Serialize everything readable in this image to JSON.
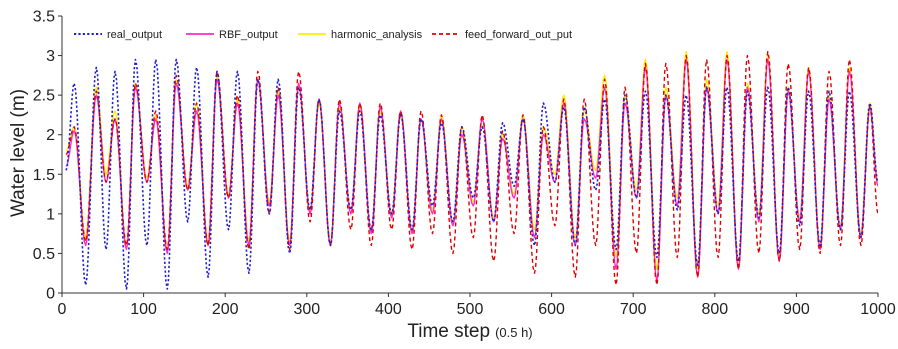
{
  "chart_data": {
    "type": "line",
    "title": "",
    "xlabel": "Time step",
    "xlabel_unit": "(0.5 h)",
    "ylabel": "Water level (m)",
    "xlim": [
      0,
      1000
    ],
    "ylim": [
      0,
      3.5
    ],
    "xticks": [
      0,
      100,
      200,
      300,
      400,
      500,
      600,
      700,
      800,
      900,
      1000
    ],
    "yticks": [
      0,
      0.5,
      1,
      1.5,
      2,
      2.5,
      3,
      3.5
    ],
    "xtick_labels": [
      "0",
      "100",
      "200",
      "300",
      "400",
      "500",
      "600",
      "700",
      "800",
      "900",
      "1000"
    ],
    "ytick_labels": [
      "0",
      "0.5",
      "1",
      "1.5",
      "2",
      "2.5",
      "3",
      "3.5"
    ],
    "grid": false,
    "legend_position": "top",
    "approx_period_timesteps": 24.8,
    "series": [
      {
        "name": "real_output",
        "color": "#1f1fd0",
        "style": "dotted",
        "peaks_x": [
          15,
          42,
          65,
          90,
          115,
          140,
          165,
          190,
          215,
          240,
          265,
          290,
          315,
          340,
          365,
          390,
          415,
          440,
          465,
          490,
          515,
          540,
          565,
          590,
          615,
          640,
          665,
          690,
          715,
          740,
          765,
          790,
          815,
          840,
          865,
          890,
          915,
          940,
          965,
          990
        ],
        "peaks_y": [
          2.65,
          2.85,
          2.8,
          2.95,
          2.95,
          2.95,
          2.85,
          2.8,
          2.8,
          2.7,
          2.7,
          2.6,
          2.45,
          2.3,
          2.3,
          2.25,
          2.25,
          2.2,
          2.15,
          2.1,
          2.1,
          2.15,
          2.2,
          2.4,
          2.35,
          2.35,
          2.45,
          2.5,
          2.55,
          2.5,
          2.5,
          2.6,
          2.6,
          2.55,
          2.6,
          2.6,
          2.55,
          2.55,
          2.55,
          2.4
        ],
        "troughs_x": [
          5,
          29,
          54,
          79,
          104,
          129,
          154,
          179,
          204,
          229,
          254,
          279,
          304,
          329,
          354,
          379,
          404,
          429,
          454,
          479,
          504,
          529,
          554,
          579,
          604,
          629,
          654,
          679,
          704,
          729,
          754,
          779,
          804,
          829,
          854,
          879,
          904,
          929,
          954,
          979,
          1000
        ],
        "troughs_y": [
          1.55,
          0.1,
          0.55,
          0.05,
          0.6,
          0.05,
          0.9,
          0.2,
          0.8,
          0.25,
          1.0,
          0.5,
          1.05,
          0.6,
          1.05,
          0.8,
          1.0,
          0.8,
          1.1,
          0.9,
          1.2,
          0.9,
          1.35,
          0.6,
          1.4,
          0.6,
          1.3,
          0.55,
          1.2,
          0.45,
          1.05,
          0.35,
          1.0,
          0.4,
          0.95,
          0.5,
          0.85,
          0.6,
          0.8,
          0.7,
          1.4
        ]
      },
      {
        "name": "RBF_output",
        "color": "#ff2ccc",
        "style": "solid",
        "peaks_x": [
          15,
          42,
          65,
          90,
          115,
          140,
          165,
          190,
          215,
          240,
          265,
          290,
          315,
          340,
          365,
          390,
          415,
          440,
          465,
          490,
          515,
          540,
          565,
          590,
          615,
          640,
          665,
          690,
          715,
          740,
          765,
          790,
          815,
          840,
          865,
          890,
          915,
          940,
          965,
          990
        ],
        "peaks_y": [
          2.05,
          2.5,
          2.2,
          2.6,
          2.2,
          2.65,
          2.3,
          2.7,
          2.4,
          2.7,
          2.5,
          2.65,
          2.45,
          2.4,
          2.4,
          2.35,
          2.3,
          2.2,
          2.2,
          2.0,
          2.2,
          1.95,
          2.2,
          2.0,
          2.4,
          2.2,
          2.6,
          2.4,
          2.85,
          2.5,
          2.95,
          2.6,
          2.95,
          2.6,
          2.95,
          2.55,
          2.8,
          2.45,
          2.8,
          2.35
        ],
        "troughs_x": [
          5,
          29,
          54,
          79,
          104,
          129,
          154,
          179,
          204,
          229,
          254,
          279,
          304,
          329,
          354,
          379,
          404,
          429,
          454,
          479,
          504,
          529,
          554,
          579,
          604,
          629,
          654,
          679,
          704,
          729,
          754,
          779,
          804,
          829,
          854,
          879,
          904,
          929,
          954,
          979,
          1000
        ],
        "troughs_y": [
          1.6,
          0.6,
          1.4,
          0.55,
          1.4,
          0.5,
          1.3,
          0.6,
          1.2,
          0.6,
          1.1,
          0.6,
          1.0,
          0.6,
          1.0,
          0.75,
          0.95,
          0.75,
          1.0,
          0.85,
          1.1,
          0.9,
          1.2,
          0.7,
          1.4,
          0.6,
          1.45,
          0.3,
          1.2,
          0.15,
          1.1,
          0.2,
          1.0,
          0.3,
          0.9,
          0.4,
          0.9,
          0.55,
          0.8,
          0.7,
          1.35
        ]
      },
      {
        "name": "harmonic_analysis",
        "color": "#ffee00",
        "style": "solid",
        "peaks_x": [
          15,
          42,
          65,
          90,
          115,
          140,
          165,
          190,
          215,
          240,
          265,
          290,
          315,
          340,
          365,
          390,
          415,
          440,
          465,
          490,
          515,
          540,
          565,
          590,
          615,
          640,
          665,
          690,
          715,
          740,
          765,
          790,
          815,
          840,
          865,
          890,
          915,
          940,
          965,
          990
        ],
        "peaks_y": [
          2.1,
          2.6,
          2.3,
          2.65,
          2.25,
          2.7,
          2.4,
          2.75,
          2.45,
          2.7,
          2.55,
          2.6,
          2.4,
          2.35,
          2.35,
          2.3,
          2.25,
          2.2,
          2.25,
          2.1,
          2.2,
          2.0,
          2.25,
          2.1,
          2.5,
          2.3,
          2.75,
          2.5,
          2.95,
          2.6,
          3.05,
          2.7,
          3.05,
          2.65,
          3.0,
          2.6,
          2.85,
          2.5,
          2.85,
          2.4
        ],
        "troughs_x": [
          5,
          29,
          54,
          79,
          104,
          129,
          154,
          179,
          204,
          229,
          254,
          279,
          304,
          329,
          354,
          379,
          404,
          429,
          454,
          479,
          504,
          529,
          554,
          579,
          604,
          629,
          654,
          679,
          704,
          729,
          754,
          779,
          804,
          829,
          854,
          879,
          904,
          929,
          954,
          979,
          1000
        ],
        "troughs_y": [
          1.8,
          0.7,
          1.5,
          0.6,
          1.45,
          0.55,
          1.35,
          0.65,
          1.25,
          0.65,
          1.15,
          0.65,
          1.05,
          0.65,
          1.05,
          0.8,
          1.0,
          0.8,
          1.05,
          0.9,
          1.15,
          0.95,
          1.25,
          0.8,
          1.5,
          0.7,
          1.55,
          0.45,
          1.3,
          0.3,
          1.2,
          0.3,
          1.1,
          0.35,
          1.0,
          0.45,
          0.95,
          0.6,
          0.85,
          0.75,
          1.4
        ]
      },
      {
        "name": "feed_forward_out_put",
        "color": "#e00000",
        "style": "dashed",
        "peaks_x": [
          15,
          42,
          65,
          90,
          115,
          140,
          165,
          190,
          215,
          240,
          265,
          290,
          315,
          340,
          365,
          390,
          415,
          440,
          465,
          490,
          515,
          540,
          565,
          590,
          615,
          640,
          665,
          690,
          715,
          740,
          765,
          790,
          815,
          840,
          865,
          890,
          915,
          940,
          965,
          990
        ],
        "peaks_y": [
          2.1,
          2.55,
          2.2,
          2.65,
          2.3,
          2.75,
          2.4,
          2.8,
          2.5,
          2.8,
          2.6,
          2.8,
          2.45,
          2.45,
          2.4,
          2.4,
          2.3,
          2.3,
          2.25,
          2.1,
          2.25,
          2.05,
          2.25,
          2.1,
          2.45,
          2.45,
          2.7,
          2.6,
          2.9,
          2.9,
          3.0,
          2.95,
          3.0,
          3.0,
          3.05,
          2.9,
          2.85,
          2.8,
          2.95,
          2.35
        ],
        "troughs_x": [
          5,
          29,
          54,
          79,
          104,
          129,
          154,
          179,
          204,
          229,
          254,
          279,
          304,
          329,
          354,
          379,
          404,
          429,
          454,
          479,
          504,
          529,
          554,
          579,
          604,
          629,
          654,
          679,
          704,
          729,
          754,
          779,
          804,
          829,
          854,
          879,
          904,
          929,
          954,
          979,
          1000
        ],
        "troughs_y": [
          1.75,
          0.65,
          1.4,
          0.6,
          1.4,
          0.55,
          1.3,
          0.6,
          1.2,
          0.55,
          1.0,
          0.55,
          0.9,
          0.6,
          0.8,
          0.6,
          0.8,
          0.55,
          0.75,
          0.5,
          0.7,
          0.4,
          0.75,
          0.25,
          0.85,
          0.2,
          0.6,
          0.1,
          0.5,
          0.1,
          0.45,
          0.2,
          0.45,
          0.3,
          0.5,
          0.4,
          0.55,
          0.5,
          0.6,
          0.6,
          1.0
        ]
      }
    ]
  }
}
